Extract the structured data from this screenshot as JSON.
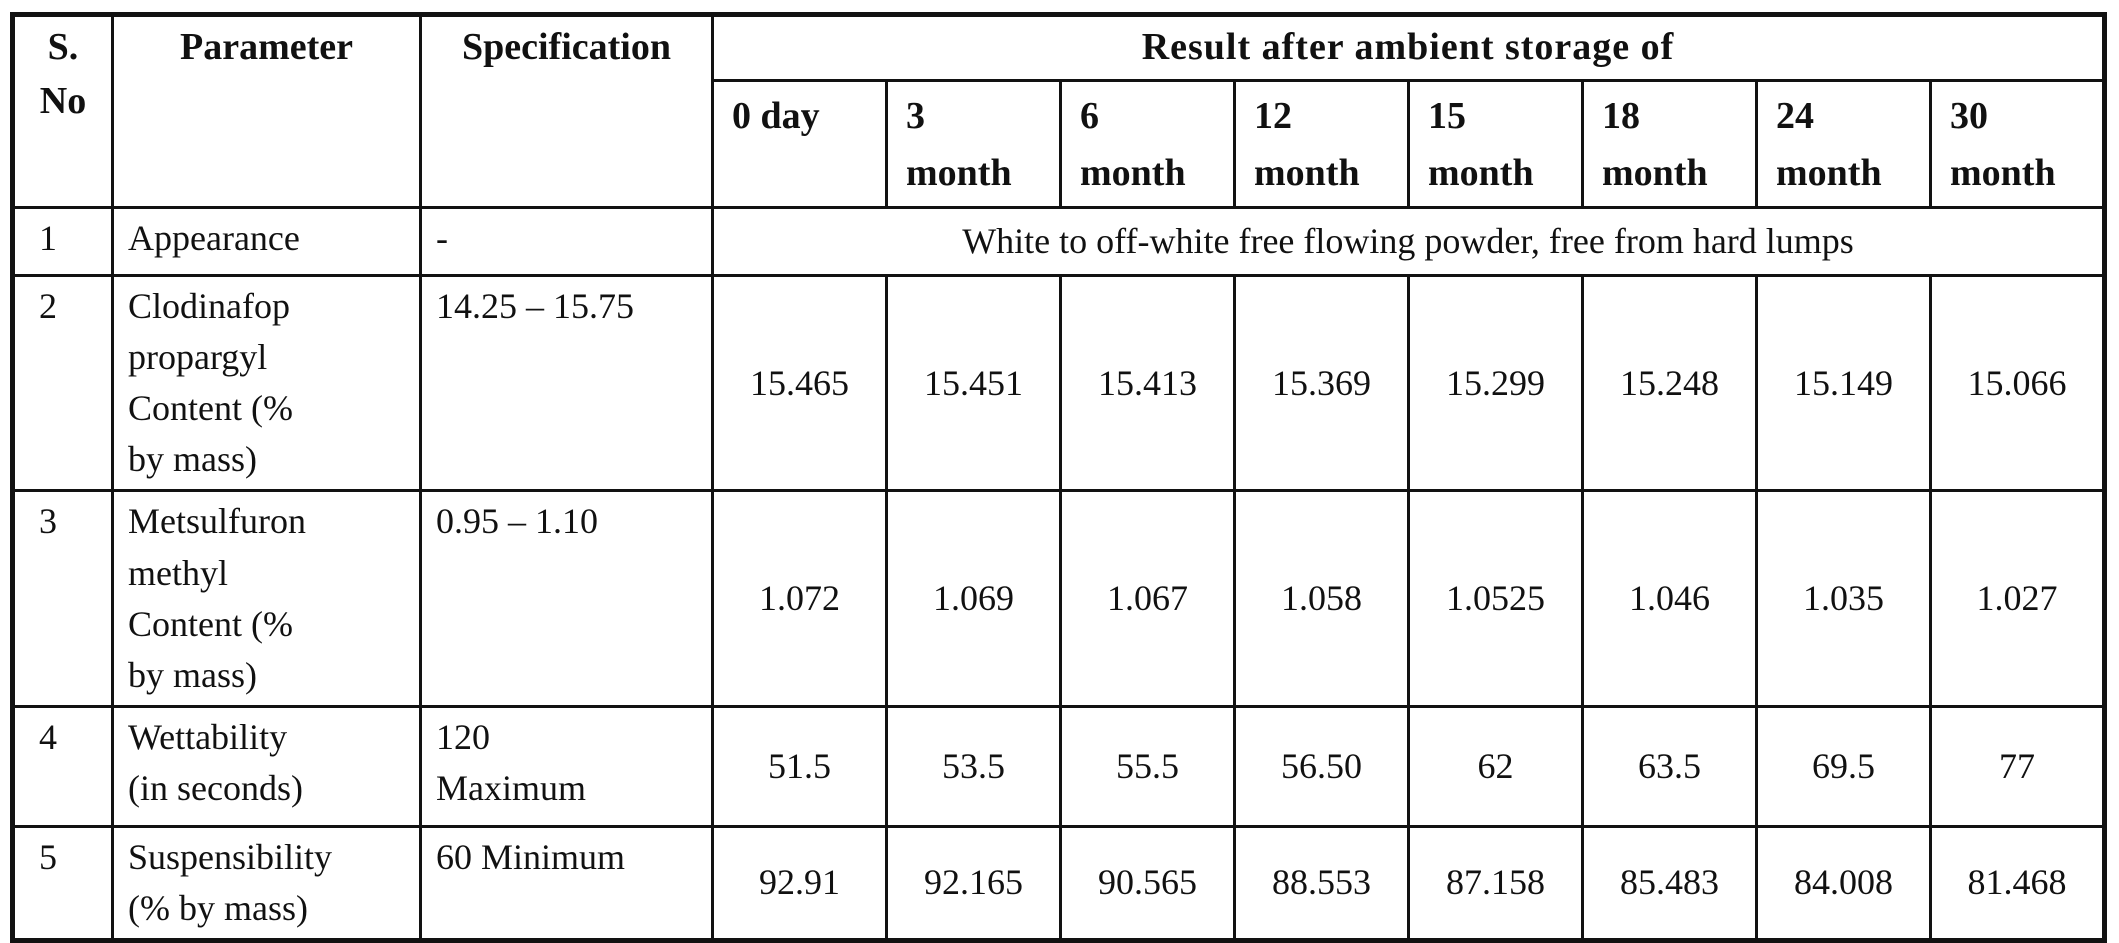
{
  "page": {
    "background": "#ffffff",
    "text_color": "#111111"
  },
  "table": {
    "header": {
      "sno": "S.\nNo",
      "parameter": "Parameter",
      "specification": "Specification",
      "result_group": "Result after ambient storage of",
      "storage_columns": [
        "0 day",
        "3\nmonth",
        "6\nmonth",
        "12\nmonth",
        "15\nmonth",
        "18\nmonth",
        "24\nmonth",
        "30\nmonth"
      ]
    },
    "rows": [
      {
        "sno": "1",
        "parameter": "Appearance",
        "specification": "-",
        "merged_result": "White to off-white free flowing powder, free from hard lumps"
      },
      {
        "sno": "2",
        "parameter": "Clodinafop\npropargyl\nContent (%\nby mass)",
        "specification": "14.25 – 15.75",
        "values": [
          "15.465",
          "15.451",
          "15.413",
          "15.369",
          "15.299",
          "15.248",
          "15.149",
          "15.066"
        ]
      },
      {
        "sno": "3",
        "parameter": "Metsulfuron\nmethyl\nContent (%\nby mass)",
        "specification": "0.95 – 1.10",
        "values": [
          "1.072",
          "1.069",
          "1.067",
          "1.058",
          "1.0525",
          "1.046",
          "1.035",
          "1.027"
        ]
      },
      {
        "sno": "4",
        "parameter": "Wettability\n(in seconds)",
        "specification": "120\nMaximum",
        "values": [
          "51.5",
          "53.5",
          "55.5",
          "56.50",
          "62",
          "63.5",
          "69.5",
          "77"
        ]
      },
      {
        "sno": "5",
        "parameter": "Suspensibility\n(% by mass)",
        "specification": "60 Minimum",
        "values": [
          "92.91",
          "92.165",
          "90.565",
          "88.553",
          "87.158",
          "85.483",
          "84.008",
          "81.468"
        ]
      }
    ]
  }
}
